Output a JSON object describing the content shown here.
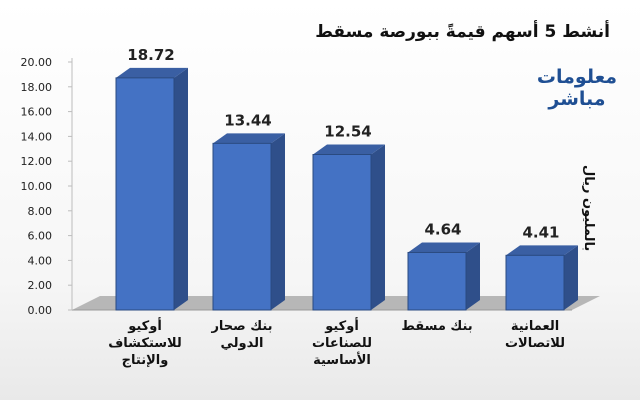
{
  "header": {
    "title": "أنشط 5  أسهم قيمةً ببورصة مسقط",
    "unit": "بالمليون ريال"
  },
  "logo": {
    "line1": "معلومات",
    "line2": "مباشر"
  },
  "chart_data": {
    "type": "bar",
    "title": "أنشط 5  أسهم قيمةً ببورصة مسقط",
    "ylabel": "بالمليون ريال",
    "xlabel": "",
    "ylim": [
      0,
      20
    ],
    "yticks": [
      "20.00",
      "18.00",
      "16.00",
      "14.00",
      "12.00",
      "10.00",
      "8.00",
      "6.00",
      "4.00",
      "2.00",
      "0.00"
    ],
    "categories": [
      [
        "أوكيو",
        "للاستكشاف",
        "والإنتاج"
      ],
      [
        "بنك صحار",
        "الدولي"
      ],
      [
        "أوكيو",
        "للصناعات",
        "الأساسية"
      ],
      [
        "بنك مسقط"
      ],
      [
        "العمانية",
        "للاتصالات"
      ]
    ],
    "values": [
      18.72,
      13.44,
      12.54,
      4.64,
      4.41
    ],
    "value_labels": [
      "18.72",
      "13.44",
      "12.54",
      "4.64",
      "4.41"
    ],
    "bar_color": "#4472c4",
    "grid": false
  }
}
